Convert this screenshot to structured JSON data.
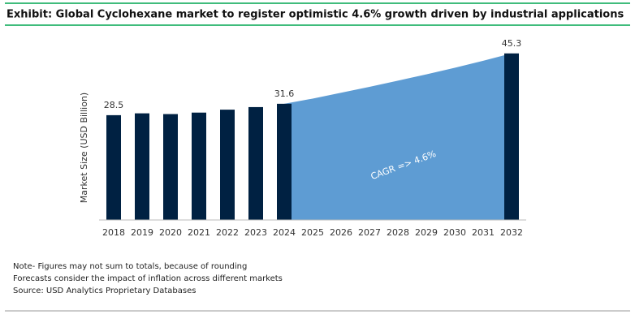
{
  "chart_data": {
    "type": "bar-area",
    "title": "Exhibit: Global Cyclohexane market to register optimistic 4.6% growth driven by industrial applications",
    "y_label": "Market Size (USD Billion)",
    "categories": [
      "2018",
      "2019",
      "2020",
      "2021",
      "2022",
      "2023",
      "2024",
      "2025",
      "2026",
      "2027",
      "2028",
      "2029",
      "2030",
      "2031",
      "2032"
    ],
    "series": [
      {
        "type": "bar",
        "color": "#002142",
        "values": [
          28.5,
          29.0,
          28.8,
          29.2,
          30.0,
          30.7,
          31.6,
          null,
          null,
          null,
          null,
          null,
          null,
          null,
          45.3
        ],
        "value_labels": [
          "28.5",
          null,
          null,
          null,
          null,
          null,
          "31.6",
          null,
          null,
          null,
          null,
          null,
          null,
          null,
          "45.3"
        ]
      },
      {
        "type": "area",
        "color": "#5e9cd3",
        "values": [
          null,
          null,
          null,
          null,
          null,
          null,
          31.6,
          33.0,
          34.6,
          36.2,
          37.9,
          39.6,
          41.4,
          43.3,
          45.3
        ]
      }
    ],
    "annotation": "CAGR =>  4.6%",
    "ylim": [
      0,
      50
    ]
  },
  "notes": [
    "Note- Figures may not sum to totals, because of rounding",
    "Forecasts consider the impact of inflation across different markets",
    "Source: USD Analytics Proprietary Databases"
  ]
}
